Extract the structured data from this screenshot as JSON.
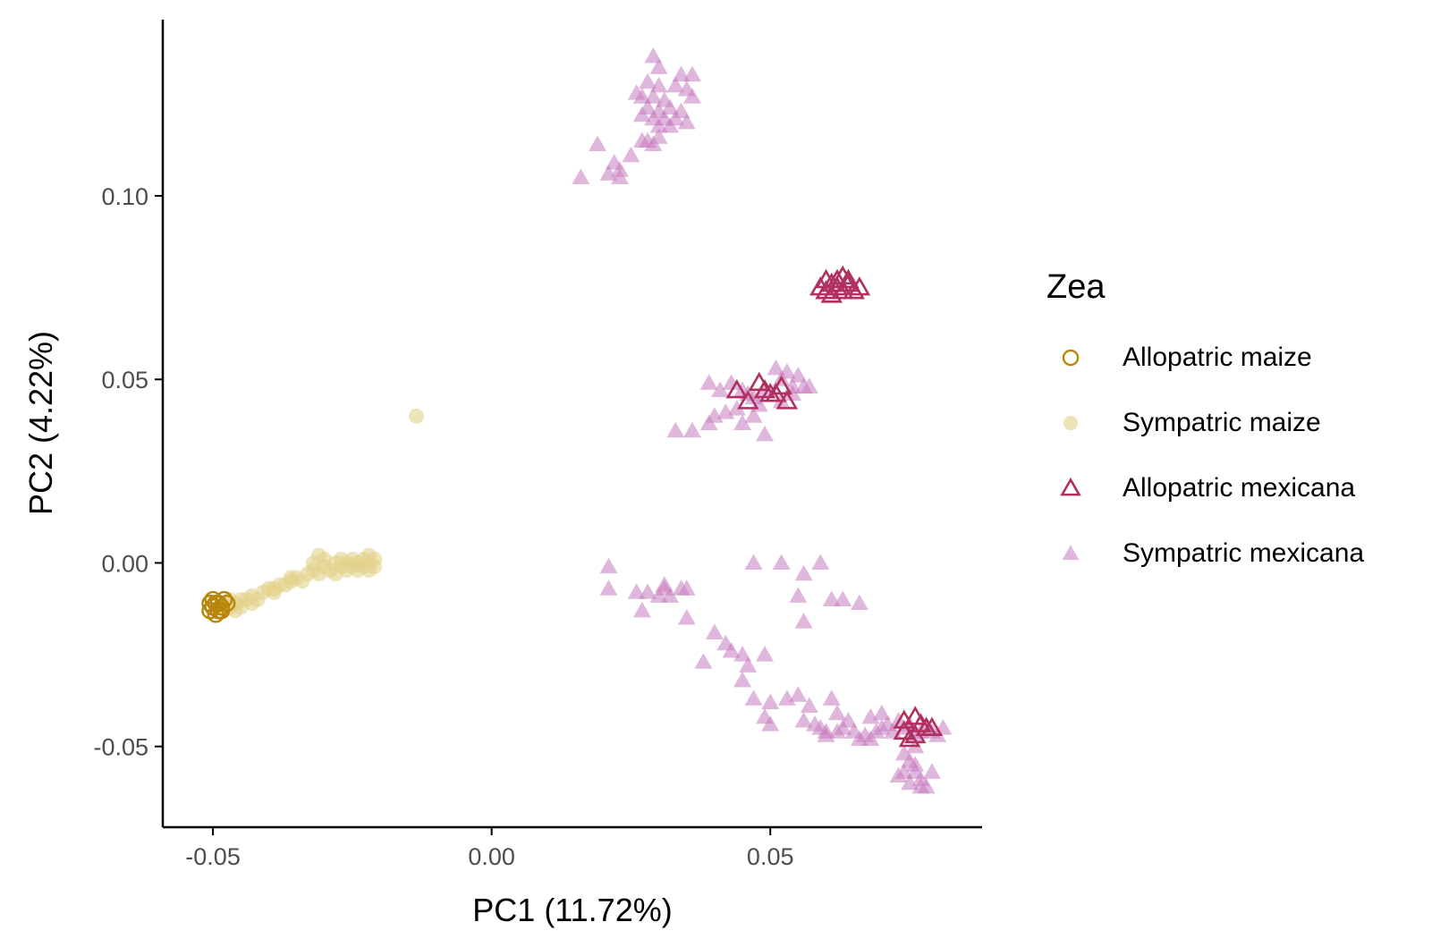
{
  "chart_data": {
    "type": "scatter",
    "title": "",
    "xlabel": "PC1 (11.72%)",
    "ylabel": "PC2 (4.22%)",
    "xlim": [
      -0.059,
      0.088
    ],
    "ylim": [
      -0.072,
      0.148
    ],
    "x_ticks": [
      -0.05,
      0.0,
      0.05
    ],
    "x_tick_labels": [
      "-0.05",
      "0.00",
      "0.05"
    ],
    "y_ticks": [
      0.1,
      0.05,
      0.0,
      -0.05
    ],
    "y_tick_labels": [
      "0.10",
      "0.05",
      "0.00",
      "-0.05"
    ],
    "grid": false,
    "legend": {
      "title": "Zea",
      "position": "right",
      "entries": [
        {
          "label": "Allopatric maize",
          "shape": "circle-open",
          "color": "#B8860B"
        },
        {
          "label": "Sympatric maize",
          "shape": "circle-filled",
          "color": "#E3D28A"
        },
        {
          "label": "Allopatric mexicana",
          "shape": "triangle-open",
          "color": "#B03060"
        },
        {
          "label": "Sympatric mexicana",
          "shape": "triangle-filled",
          "color": "#C77CC0"
        }
      ]
    },
    "series": [
      {
        "name": "Sympatric maize",
        "shape": "circle-filled",
        "color": "#E3D28A",
        "points": [
          [
            -0.0135,
            0.04
          ],
          [
            -0.049,
            -0.012
          ],
          [
            -0.048,
            -0.011
          ],
          [
            -0.047,
            -0.012
          ],
          [
            -0.046,
            -0.011
          ],
          [
            -0.045,
            -0.01
          ],
          [
            -0.044,
            -0.01
          ],
          [
            -0.043,
            -0.009
          ],
          [
            -0.042,
            -0.01
          ],
          [
            -0.041,
            -0.008
          ],
          [
            -0.04,
            -0.007
          ],
          [
            -0.039,
            -0.008
          ],
          [
            -0.038,
            -0.006
          ],
          [
            -0.037,
            -0.006
          ],
          [
            -0.036,
            -0.005
          ],
          [
            -0.035,
            -0.004
          ],
          [
            -0.034,
            -0.005
          ],
          [
            -0.033,
            -0.003
          ],
          [
            -0.032,
            -0.002
          ],
          [
            -0.031,
            -0.003
          ],
          [
            -0.03,
            -0.001
          ],
          [
            -0.03,
            0.001
          ],
          [
            -0.029,
            -0.002
          ],
          [
            -0.028,
            0.0
          ],
          [
            -0.028,
            -0.003
          ],
          [
            -0.027,
            -0.001
          ],
          [
            -0.027,
            0.001
          ],
          [
            -0.026,
            -0.002
          ],
          [
            -0.026,
            0.0
          ],
          [
            -0.025,
            -0.001
          ],
          [
            -0.025,
            0.001
          ],
          [
            -0.024,
            -0.002
          ],
          [
            -0.024,
            0.0
          ],
          [
            -0.023,
            -0.001
          ],
          [
            -0.023,
            0.001
          ],
          [
            -0.022,
            0.0
          ],
          [
            -0.022,
            -0.002
          ],
          [
            -0.022,
            0.002
          ],
          [
            -0.021,
            -0.001
          ],
          [
            -0.021,
            0.001
          ],
          [
            -0.032,
            0.0
          ],
          [
            -0.031,
            0.002
          ],
          [
            -0.036,
            -0.004
          ],
          [
            -0.039,
            -0.007
          ],
          [
            -0.047,
            -0.01
          ],
          [
            -0.046,
            -0.013
          ],
          [
            -0.048,
            -0.013
          ],
          [
            -0.045,
            -0.012
          ],
          [
            -0.043,
            -0.011
          ]
        ]
      },
      {
        "name": "Allopatric maize",
        "shape": "circle-open",
        "color": "#B8860B",
        "points": [
          [
            -0.0505,
            -0.013
          ],
          [
            -0.05,
            -0.012
          ],
          [
            -0.0495,
            -0.011
          ],
          [
            -0.049,
            -0.013
          ],
          [
            -0.0485,
            -0.012
          ],
          [
            -0.05,
            -0.01
          ],
          [
            -0.049,
            -0.011
          ],
          [
            -0.0485,
            -0.013
          ],
          [
            -0.048,
            -0.01
          ],
          [
            -0.0475,
            -0.011
          ],
          [
            -0.0495,
            -0.014
          ],
          [
            -0.0505,
            -0.011
          ]
        ]
      },
      {
        "name": "Sympatric mexicana",
        "shape": "triangle-filled",
        "color": "#C77CC0",
        "points": [
          [
            0.029,
            0.138
          ],
          [
            0.03,
            0.135
          ],
          [
            0.034,
            0.133
          ],
          [
            0.036,
            0.133
          ],
          [
            0.028,
            0.131
          ],
          [
            0.03,
            0.13
          ],
          [
            0.033,
            0.13
          ],
          [
            0.035,
            0.129
          ],
          [
            0.026,
            0.128
          ],
          [
            0.027,
            0.127
          ],
          [
            0.029,
            0.127
          ],
          [
            0.031,
            0.126
          ],
          [
            0.036,
            0.127
          ],
          [
            0.028,
            0.124
          ],
          [
            0.03,
            0.123
          ],
          [
            0.032,
            0.124
          ],
          [
            0.034,
            0.123
          ],
          [
            0.027,
            0.122
          ],
          [
            0.029,
            0.121
          ],
          [
            0.031,
            0.121
          ],
          [
            0.033,
            0.121
          ],
          [
            0.035,
            0.12
          ],
          [
            0.03,
            0.119
          ],
          [
            0.032,
            0.119
          ],
          [
            0.027,
            0.115
          ],
          [
            0.028,
            0.115
          ],
          [
            0.029,
            0.114
          ],
          [
            0.03,
            0.116
          ],
          [
            0.019,
            0.114
          ],
          [
            0.025,
            0.111
          ],
          [
            0.022,
            0.109
          ],
          [
            0.023,
            0.107
          ],
          [
            0.021,
            0.106
          ],
          [
            0.016,
            0.105
          ],
          [
            0.023,
            0.105
          ],
          [
            0.039,
            0.049
          ],
          [
            0.041,
            0.047
          ],
          [
            0.043,
            0.049
          ],
          [
            0.045,
            0.047
          ],
          [
            0.046,
            0.046
          ],
          [
            0.047,
            0.045
          ],
          [
            0.049,
            0.047
          ],
          [
            0.051,
            0.053
          ],
          [
            0.052,
            0.05
          ],
          [
            0.053,
            0.052
          ],
          [
            0.054,
            0.048
          ],
          [
            0.055,
            0.051
          ],
          [
            0.054,
            0.046
          ],
          [
            0.056,
            0.048
          ],
          [
            0.057,
            0.048
          ],
          [
            0.052,
            0.044
          ],
          [
            0.048,
            0.043
          ],
          [
            0.044,
            0.042
          ],
          [
            0.04,
            0.04
          ],
          [
            0.042,
            0.041
          ],
          [
            0.045,
            0.038
          ],
          [
            0.039,
            0.038
          ],
          [
            0.036,
            0.036
          ],
          [
            0.033,
            0.036
          ],
          [
            0.049,
            0.035
          ],
          [
            0.047,
            0.04
          ],
          [
            0.021,
            -0.001
          ],
          [
            0.021,
            -0.007
          ],
          [
            0.026,
            -0.008
          ],
          [
            0.028,
            -0.008
          ],
          [
            0.031,
            -0.006
          ],
          [
            0.031,
            -0.007
          ],
          [
            0.034,
            -0.007
          ],
          [
            0.035,
            -0.007
          ],
          [
            0.03,
            -0.009
          ],
          [
            0.032,
            -0.009
          ],
          [
            0.027,
            -0.013
          ],
          [
            0.035,
            -0.015
          ],
          [
            0.047,
            0.0
          ],
          [
            0.052,
            0.0
          ],
          [
            0.056,
            -0.003
          ],
          [
            0.059,
            0.0
          ],
          [
            0.055,
            -0.009
          ],
          [
            0.061,
            -0.01
          ],
          [
            0.063,
            -0.01
          ],
          [
            0.066,
            -0.011
          ],
          [
            0.056,
            -0.016
          ],
          [
            0.04,
            -0.019
          ],
          [
            0.042,
            -0.022
          ],
          [
            0.043,
            -0.024
          ],
          [
            0.045,
            -0.025
          ],
          [
            0.049,
            -0.025
          ],
          [
            0.046,
            -0.028
          ],
          [
            0.038,
            -0.027
          ],
          [
            0.045,
            -0.032
          ],
          [
            0.047,
            -0.037
          ],
          [
            0.05,
            -0.038
          ],
          [
            0.053,
            -0.037
          ],
          [
            0.055,
            -0.036
          ],
          [
            0.057,
            -0.039
          ],
          [
            0.061,
            -0.037
          ],
          [
            0.062,
            -0.041
          ],
          [
            0.064,
            -0.043
          ],
          [
            0.049,
            -0.042
          ],
          [
            0.05,
            -0.044
          ],
          [
            0.056,
            -0.043
          ],
          [
            0.058,
            -0.044
          ],
          [
            0.059,
            -0.045
          ],
          [
            0.06,
            -0.046
          ],
          [
            0.062,
            -0.046
          ],
          [
            0.063,
            -0.045
          ],
          [
            0.065,
            -0.046
          ],
          [
            0.066,
            -0.048
          ],
          [
            0.067,
            -0.047
          ],
          [
            0.068,
            -0.048
          ],
          [
            0.069,
            -0.046
          ],
          [
            0.07,
            -0.045
          ],
          [
            0.071,
            -0.044
          ],
          [
            0.072,
            -0.046
          ],
          [
            0.073,
            -0.043
          ],
          [
            0.074,
            -0.045
          ],
          [
            0.075,
            -0.044
          ],
          [
            0.076,
            -0.047
          ],
          [
            0.077,
            -0.046
          ],
          [
            0.078,
            -0.045
          ],
          [
            0.079,
            -0.046
          ],
          [
            0.08,
            -0.047
          ],
          [
            0.081,
            -0.045
          ],
          [
            0.068,
            -0.042
          ],
          [
            0.07,
            -0.041
          ],
          [
            0.06,
            -0.047
          ],
          [
            0.074,
            -0.052
          ],
          [
            0.075,
            -0.054
          ],
          [
            0.076,
            -0.055
          ],
          [
            0.074,
            -0.057
          ],
          [
            0.076,
            -0.057
          ],
          [
            0.077,
            -0.059
          ],
          [
            0.075,
            -0.06
          ],
          [
            0.077,
            -0.061
          ],
          [
            0.078,
            -0.061
          ],
          [
            0.079,
            -0.057
          ],
          [
            0.073,
            -0.058
          ],
          [
            0.076,
            -0.05
          ]
        ]
      },
      {
        "name": "Allopatric mexicana",
        "shape": "triangle-open",
        "color": "#B03060",
        "points": [
          [
            0.06,
            0.074
          ],
          [
            0.061,
            0.076
          ],
          [
            0.062,
            0.077
          ],
          [
            0.063,
            0.078
          ],
          [
            0.064,
            0.076
          ],
          [
            0.065,
            0.074
          ],
          [
            0.062,
            0.075
          ],
          [
            0.063,
            0.074
          ],
          [
            0.064,
            0.077
          ],
          [
            0.061,
            0.073
          ],
          [
            0.059,
            0.075
          ],
          [
            0.066,
            0.075
          ],
          [
            0.06,
            0.077
          ],
          [
            0.044,
            0.047
          ],
          [
            0.046,
            0.044
          ],
          [
            0.048,
            0.049
          ],
          [
            0.049,
            0.047
          ],
          [
            0.05,
            0.046
          ],
          [
            0.052,
            0.048
          ],
          [
            0.053,
            0.044
          ],
          [
            0.051,
            0.046
          ],
          [
            0.074,
            -0.043
          ],
          [
            0.076,
            -0.042
          ],
          [
            0.076,
            -0.047
          ],
          [
            0.078,
            -0.045
          ],
          [
            0.075,
            -0.048
          ],
          [
            0.074,
            -0.046
          ],
          [
            0.079,
            -0.045
          ],
          [
            0.077,
            -0.044
          ]
        ]
      }
    ]
  }
}
